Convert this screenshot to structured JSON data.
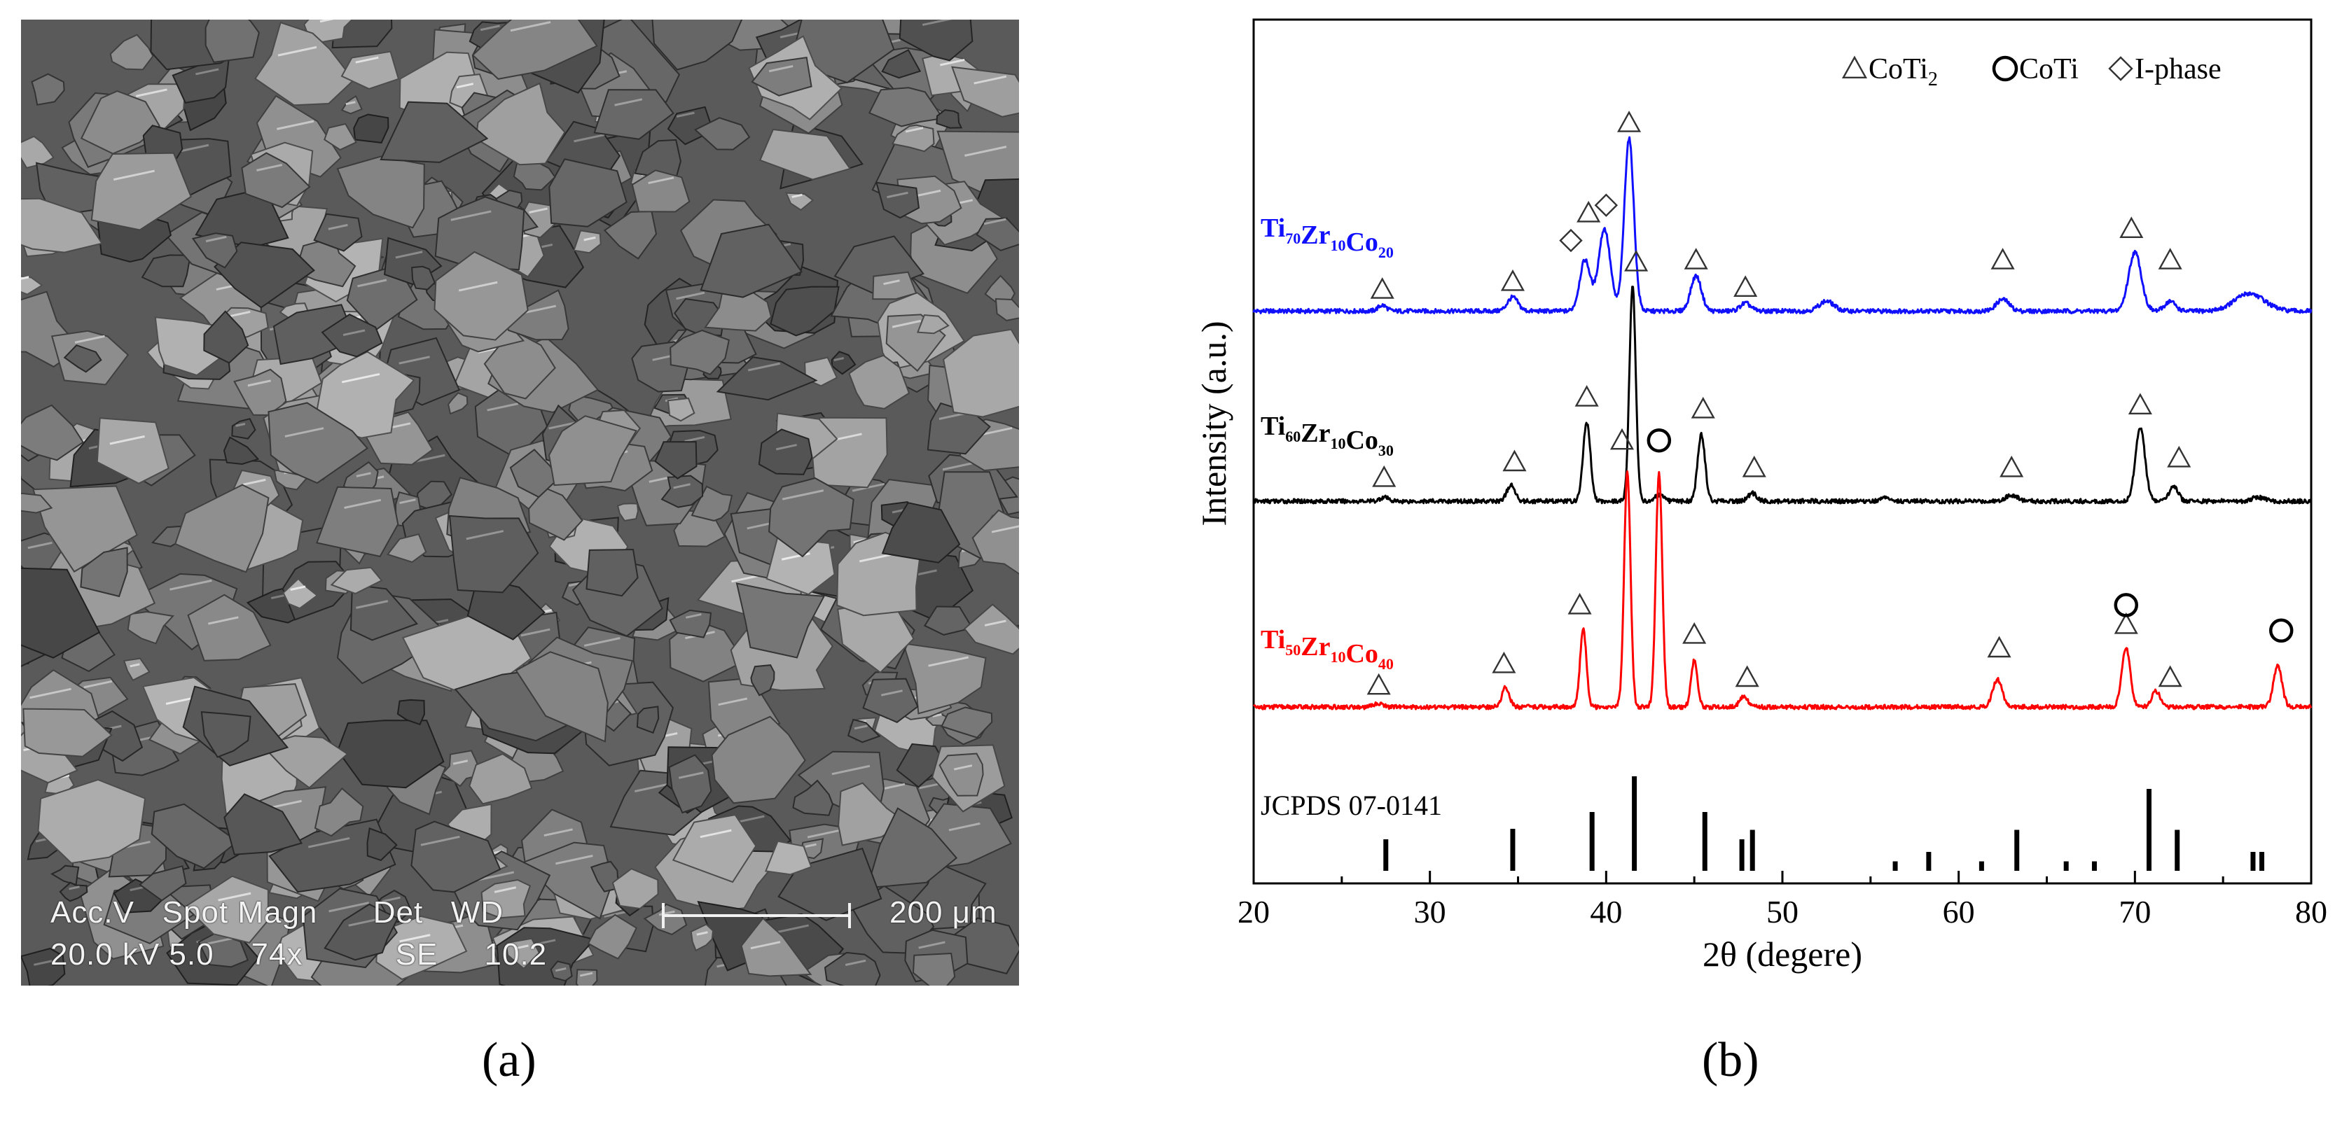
{
  "panel_a": {
    "label": "(a)",
    "info_line1": "Acc.V   Spot Magn      Det   WD",
    "info_line2": "20.0 kV 5.0    74x          SE     10.2",
    "scale_label": "200 μm"
  },
  "panel_b": {
    "label": "(b)"
  },
  "chart_data": {
    "type": "line",
    "xlabel": "2θ (degere)",
    "ylabel": "Intensity (a.u.)",
    "xlim": [
      20,
      80
    ],
    "xticks": [
      20,
      30,
      40,
      50,
      60,
      70,
      80
    ],
    "y_ticks_visible": false,
    "legend_placement": "top-right",
    "legend": [
      {
        "marker": "triangle",
        "text": "CoTi",
        "subscript": "2"
      },
      {
        "marker": "circle",
        "text": "CoTi",
        "subscript": ""
      },
      {
        "marker": "diamond",
        "text": "I-phase",
        "subscript": ""
      }
    ],
    "series": [
      {
        "name_parts": [
          [
            "Ti",
            "70"
          ],
          [
            "Zr",
            "10"
          ],
          [
            "Co",
            "20"
          ]
        ],
        "color": "#1010ff",
        "offset": 2.0,
        "baseline": 0.02,
        "peaks": [
          [
            27.3,
            0.03,
            0.4
          ],
          [
            34.7,
            0.07,
            0.5
          ],
          [
            38.8,
            0.26,
            0.5
          ],
          [
            39.9,
            0.42,
            0.55
          ],
          [
            41.3,
            0.88,
            0.45
          ],
          [
            45.1,
            0.18,
            0.5
          ],
          [
            47.9,
            0.04,
            0.5
          ],
          [
            52.5,
            0.05,
            0.7
          ],
          [
            62.5,
            0.06,
            0.6
          ],
          [
            70.0,
            0.3,
            0.6
          ],
          [
            72.0,
            0.05,
            0.5
          ],
          [
            76.5,
            0.09,
            1.4
          ]
        ],
        "markers": [
          {
            "type": "triangle",
            "x": 27.3,
            "y": 0.13
          },
          {
            "type": "triangle",
            "x": 34.7,
            "y": 0.17
          },
          {
            "type": "diamond",
            "x": 38.0,
            "y": 0.38
          },
          {
            "type": "triangle",
            "x": 39.0,
            "y": 0.52
          },
          {
            "type": "diamond",
            "x": 40.0,
            "y": 0.56
          },
          {
            "type": "triangle",
            "x": 41.3,
            "y": 0.98
          },
          {
            "type": "triangle",
            "x": 45.1,
            "y": 0.28
          },
          {
            "type": "triangle",
            "x": 47.9,
            "y": 0.14
          },
          {
            "type": "triangle",
            "x": 62.5,
            "y": 0.28
          },
          {
            "type": "triangle",
            "x": 69.8,
            "y": 0.44
          },
          {
            "type": "triangle",
            "x": 72.0,
            "y": 0.28
          }
        ]
      },
      {
        "name_parts": [
          [
            "Ti",
            "60"
          ],
          [
            "Zr",
            "10"
          ],
          [
            "Co",
            "30"
          ]
        ],
        "color": "#000000",
        "offset": 1.05,
        "baseline": 0.0,
        "peaks": [
          [
            27.4,
            0.02,
            0.4
          ],
          [
            34.6,
            0.08,
            0.4
          ],
          [
            38.9,
            0.4,
            0.35
          ],
          [
            41.5,
            1.1,
            0.3
          ],
          [
            43.0,
            0.03,
            0.4
          ],
          [
            45.4,
            0.34,
            0.35
          ],
          [
            48.3,
            0.04,
            0.4
          ],
          [
            55.8,
            0.02,
            0.4
          ],
          [
            63.0,
            0.03,
            0.6
          ],
          [
            70.3,
            0.38,
            0.45
          ],
          [
            72.2,
            0.08,
            0.4
          ],
          [
            77.0,
            0.02,
            0.6
          ]
        ],
        "markers": [
          {
            "type": "triangle",
            "x": 27.4,
            "y": 0.12
          },
          {
            "type": "triangle",
            "x": 34.8,
            "y": 0.2
          },
          {
            "type": "triangle",
            "x": 38.9,
            "y": 0.53
          },
          {
            "type": "triangle",
            "x": 41.7,
            "y": 1.22
          },
          {
            "type": "triangle",
            "x": 45.5,
            "y": 0.47
          },
          {
            "type": "triangle",
            "x": 48.4,
            "y": 0.17
          },
          {
            "type": "triangle",
            "x": 63.0,
            "y": 0.17
          },
          {
            "type": "triangle",
            "x": 70.3,
            "y": 0.49
          },
          {
            "type": "triangle",
            "x": 72.5,
            "y": 0.22
          }
        ]
      },
      {
        "name_parts": [
          [
            "Ti",
            "50"
          ],
          [
            "Zr",
            "10"
          ],
          [
            "Co",
            "40"
          ]
        ],
        "color": "#ff0000",
        "offset": 0.0,
        "baseline": 0.0,
        "peaks": [
          [
            27.1,
            0.02,
            0.4
          ],
          [
            34.3,
            0.1,
            0.35
          ],
          [
            38.7,
            0.4,
            0.3
          ],
          [
            41.2,
            1.2,
            0.3
          ],
          [
            43.0,
            1.2,
            0.3
          ],
          [
            45.0,
            0.24,
            0.3
          ],
          [
            47.8,
            0.05,
            0.4
          ],
          [
            62.2,
            0.14,
            0.45
          ],
          [
            69.5,
            0.3,
            0.4
          ],
          [
            71.2,
            0.08,
            0.4
          ],
          [
            78.1,
            0.21,
            0.4
          ]
        ],
        "markers": [
          {
            "type": "triangle",
            "x": 27.1,
            "y": 0.11
          },
          {
            "type": "triangle",
            "x": 34.2,
            "y": 0.22
          },
          {
            "type": "triangle",
            "x": 38.5,
            "y": 0.52
          },
          {
            "type": "triangle",
            "x": 40.9,
            "y": 1.36
          },
          {
            "type": "circle",
            "x": 43.0,
            "y": 1.36
          },
          {
            "type": "triangle",
            "x": 45.0,
            "y": 0.37
          },
          {
            "type": "triangle",
            "x": 48.0,
            "y": 0.15
          },
          {
            "type": "triangle",
            "x": 62.3,
            "y": 0.3
          },
          {
            "type": "triangle",
            "x": 69.5,
            "y": 0.42
          },
          {
            "type": "circle",
            "x": 69.5,
            "y": 0.52
          },
          {
            "type": "triangle",
            "x": 72.0,
            "y": 0.15
          },
          {
            "type": "circle",
            "x": 78.3,
            "y": 0.39
          }
        ]
      }
    ],
    "reference": {
      "label": "JCPDS 07-0141",
      "sticks": [
        [
          27.5,
          0.3
        ],
        [
          34.7,
          0.4
        ],
        [
          39.2,
          0.56
        ],
        [
          41.6,
          0.9
        ],
        [
          45.6,
          0.56
        ],
        [
          47.7,
          0.3
        ],
        [
          48.3,
          0.39
        ],
        [
          56.4,
          0.09
        ],
        [
          58.3,
          0.18
        ],
        [
          61.3,
          0.09
        ],
        [
          63.3,
          0.39
        ],
        [
          66.1,
          0.09
        ],
        [
          67.7,
          0.09
        ],
        [
          70.8,
          0.78
        ],
        [
          72.4,
          0.39
        ],
        [
          76.7,
          0.18
        ],
        [
          77.2,
          0.18
        ]
      ]
    }
  }
}
